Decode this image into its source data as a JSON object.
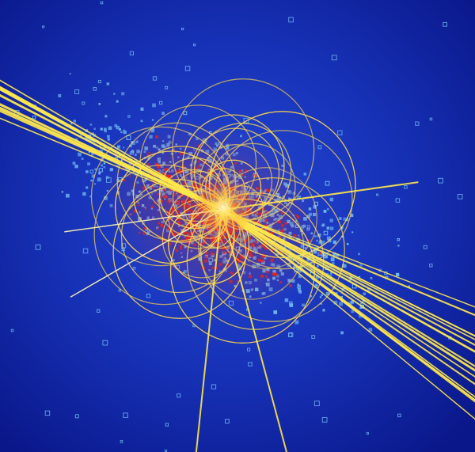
{
  "scene": {
    "subject": "particle-collision-event-display",
    "colors": {
      "background": "#0b1a8c",
      "background_glow": "#1f3fd6",
      "track": "#ffe84a",
      "track_hot": "#fff7b0",
      "red_hits": "#e3231e",
      "blue_hits": "#6fb6f0",
      "core": "#fff3a0"
    }
  }
}
